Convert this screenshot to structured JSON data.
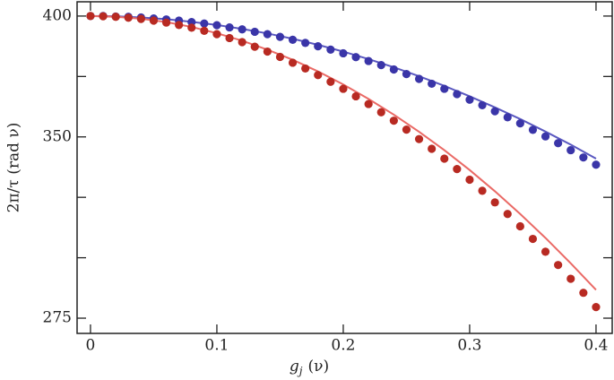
{
  "chart_data": {
    "type": "line",
    "x_label": {
      "symbol": "g",
      "subscript": "j",
      "unit": "(ν)"
    },
    "y_label": "2π/τ (rad ν)",
    "xlim": [
      -0.0106,
      0.4128
    ],
    "xticks": [
      0,
      0.1,
      0.2,
      0.3,
      0.4
    ],
    "ylim": [
      268.7,
      405.9
    ],
    "yticks": [
      275,
      350,
      400
    ],
    "yminorticks": [
      300,
      325,
      375
    ],
    "series": [
      {
        "style": "markers",
        "color": "#3a35a8",
        "x": [
          0,
          0.01,
          0.02,
          0.03,
          0.04,
          0.05,
          0.06,
          0.07,
          0.08,
          0.09,
          0.1,
          0.11,
          0.12,
          0.13,
          0.14,
          0.15,
          0.16,
          0.17,
          0.18,
          0.19,
          0.2,
          0.21,
          0.22,
          0.23,
          0.24,
          0.25,
          0.26,
          0.27,
          0.28,
          0.29,
          0.3,
          0.31,
          0.32,
          0.33,
          0.34,
          0.35,
          0.36,
          0.37,
          0.38,
          0.39,
          0.4
        ],
        "values": [
          400,
          400.0,
          399.8,
          399.7,
          399.4,
          399.0,
          398.6,
          398.1,
          397.5,
          396.9,
          396.2,
          395.3,
          394.5,
          393.5,
          392.5,
          391.4,
          390.2,
          388.9,
          387.5,
          386.1,
          384.6,
          383.0,
          381.4,
          379.7,
          377.9,
          376.0,
          374.0,
          372.0,
          369.9,
          367.7,
          365.4,
          363.1,
          360.6,
          358.1,
          355.6,
          352.9,
          350.2,
          347.4,
          344.5,
          341.5,
          338.5
        ]
      },
      {
        "style": "markers",
        "color": "#b82a22",
        "x": [
          0,
          0.01,
          0.02,
          0.03,
          0.04,
          0.05,
          0.06,
          0.07,
          0.08,
          0.09,
          0.1,
          0.11,
          0.12,
          0.13,
          0.14,
          0.15,
          0.16,
          0.17,
          0.18,
          0.19,
          0.2,
          0.21,
          0.22,
          0.23,
          0.24,
          0.25,
          0.26,
          0.27,
          0.28,
          0.29,
          0.3,
          0.31,
          0.32,
          0.33,
          0.34,
          0.35,
          0.36,
          0.37,
          0.38,
          0.39,
          0.4
        ],
        "values": [
          400,
          399.9,
          399.7,
          399.3,
          398.8,
          398.1,
          397.3,
          396.3,
          395.2,
          393.9,
          392.5,
          390.9,
          389.2,
          387.3,
          385.3,
          383.1,
          380.7,
          378.3,
          375.6,
          372.8,
          369.9,
          366.8,
          363.6,
          360.2,
          356.7,
          353.0,
          349.1,
          345.1,
          341.0,
          336.7,
          332.3,
          327.7,
          322.9,
          318.1,
          313.0,
          307.8,
          302.5,
          297.0,
          291.3,
          285.5,
          279.6
        ]
      },
      {
        "style": "line",
        "color": "#5a58c0",
        "x": [
          0,
          0.02,
          0.04,
          0.06,
          0.08,
          0.1,
          0.12,
          0.14,
          0.16,
          0.18,
          0.2,
          0.22,
          0.24,
          0.26,
          0.28,
          0.3,
          0.32,
          0.34,
          0.36,
          0.38,
          0.4
        ],
        "values": [
          400,
          399.9,
          399.4,
          398.7,
          397.6,
          396.3,
          394.7,
          392.8,
          390.6,
          388.1,
          385.3,
          382.2,
          378.8,
          375.1,
          371.1,
          366.8,
          362.2,
          357.4,
          352.2,
          346.8,
          341.0
        ]
      },
      {
        "style": "line",
        "color": "#ea6a66",
        "x": [
          0,
          0.02,
          0.04,
          0.06,
          0.08,
          0.1,
          0.12,
          0.14,
          0.16,
          0.18,
          0.2,
          0.22,
          0.24,
          0.26,
          0.28,
          0.3,
          0.32,
          0.34,
          0.36,
          0.38,
          0.4
        ],
        "values": [
          400,
          399.7,
          398.9,
          397.5,
          395.5,
          392.9,
          389.8,
          386.1,
          381.9,
          377.1,
          371.7,
          365.7,
          359.2,
          352.1,
          344.5,
          336.3,
          327.5,
          318.1,
          308.2,
          297.7,
          286.7
        ]
      }
    ]
  }
}
